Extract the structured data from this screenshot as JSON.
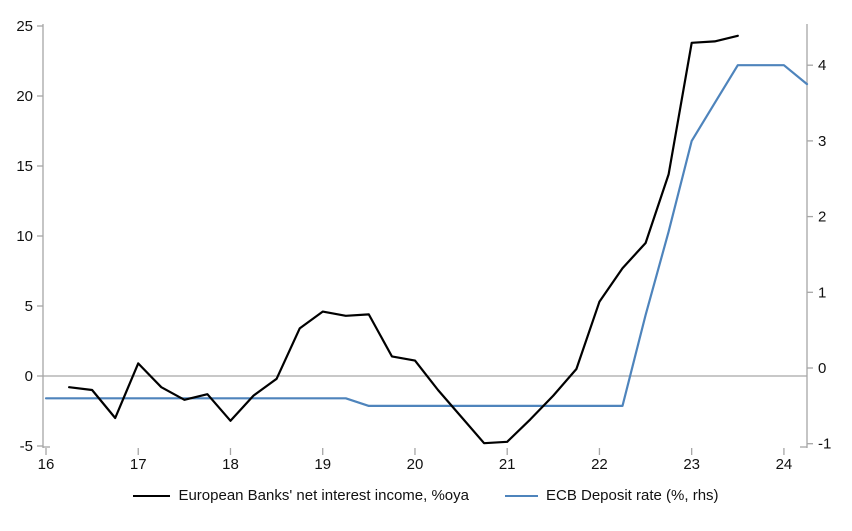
{
  "chart_data": {
    "type": "line",
    "title": "",
    "legend_position": "bottom",
    "grid": "zero-line-only",
    "x_axis": {
      "ticks": [
        16,
        17,
        18,
        19,
        20,
        21,
        22,
        23,
        24
      ],
      "range": [
        16,
        24.25
      ]
    },
    "left_axis": {
      "ticks": [
        25,
        20,
        15,
        10,
        5,
        0,
        -5
      ],
      "range": [
        -5,
        25
      ]
    },
    "right_axis": {
      "ticks": [
        4,
        3,
        2,
        1,
        0,
        -1
      ],
      "range": [
        -1,
        4.5
      ]
    },
    "series": [
      {
        "name": "European Banks' net interest income, %oya",
        "axis": "left",
        "color": "#000000",
        "x": [
          16.25,
          16.5,
          16.75,
          17.0,
          17.25,
          17.5,
          17.75,
          18.0,
          18.25,
          18.5,
          18.75,
          19.0,
          19.25,
          19.5,
          19.75,
          20.0,
          20.25,
          20.5,
          20.75,
          21.0,
          21.25,
          21.5,
          21.75,
          22.0,
          22.25,
          22.5,
          22.75,
          23.0,
          23.25,
          23.5
        ],
        "values": [
          -0.8,
          -1.0,
          -3.0,
          0.9,
          -0.8,
          -1.7,
          -1.3,
          -3.2,
          -1.4,
          -0.2,
          3.4,
          4.6,
          4.3,
          4.4,
          1.4,
          1.1,
          -1.0,
          -2.9,
          -4.8,
          -4.7,
          -3.1,
          -1.4,
          0.5,
          5.3,
          7.7,
          9.5,
          14.4,
          23.8,
          23.9,
          24.3
        ]
      },
      {
        "name": "ECB Deposit rate (%, rhs)",
        "axis": "right",
        "color": "#4e84bc",
        "x": [
          16.0,
          16.25,
          16.5,
          16.75,
          17.0,
          17.25,
          17.5,
          17.75,
          18.0,
          18.25,
          18.5,
          18.75,
          19.0,
          19.25,
          19.5,
          19.75,
          20.0,
          20.25,
          20.5,
          20.75,
          21.0,
          21.25,
          21.5,
          21.75,
          22.0,
          22.25,
          22.5,
          22.75,
          23.0,
          23.25,
          23.5,
          23.75,
          24.0,
          24.25
        ],
        "values": [
          -0.4,
          -0.4,
          -0.4,
          -0.4,
          -0.4,
          -0.4,
          -0.4,
          -0.4,
          -0.4,
          -0.4,
          -0.4,
          -0.4,
          -0.4,
          -0.4,
          -0.5,
          -0.5,
          -0.5,
          -0.5,
          -0.5,
          -0.5,
          -0.5,
          -0.5,
          -0.5,
          -0.5,
          -0.5,
          -0.5,
          0.7,
          1.8,
          3.0,
          3.5,
          4.0,
          4.0,
          4.0,
          3.75
        ]
      }
    ],
    "colors": {
      "axis_line": "#a6a6a6",
      "zero_line": "#a6a6a6",
      "label_text": "#111111"
    }
  }
}
